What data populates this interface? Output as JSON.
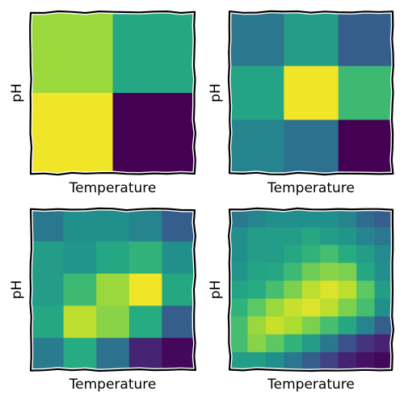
{
  "chart_data": [
    {
      "type": "heatmap",
      "xlabel": "Temperature",
      "ylabel": "pH",
      "colormap": "viridis",
      "grid": false,
      "values": [
        [
          0.85,
          0.6
        ],
        [
          0.98,
          0.0
        ]
      ]
    },
    {
      "type": "heatmap",
      "xlabel": "Temperature",
      "ylabel": "pH",
      "colormap": "viridis",
      "grid": false,
      "values": [
        [
          0.4,
          0.55,
          0.3
        ],
        [
          0.58,
          0.98,
          0.68
        ],
        [
          0.45,
          0.38,
          0.0
        ]
      ]
    },
    {
      "type": "heatmap",
      "xlabel": "Temperature",
      "ylabel": "pH",
      "colormap": "viridis",
      "grid": false,
      "values": [
        [
          0.4,
          0.5,
          0.5,
          0.45,
          0.3
        ],
        [
          0.55,
          0.52,
          0.6,
          0.65,
          0.5
        ],
        [
          0.55,
          0.68,
          0.85,
          0.98,
          0.6
        ],
        [
          0.6,
          0.9,
          0.82,
          0.62,
          0.3
        ],
        [
          0.42,
          0.62,
          0.38,
          0.1,
          0.02
        ]
      ]
    },
    {
      "type": "heatmap",
      "xlabel": "Temperature",
      "ylabel": "pH",
      "colormap": "viridis",
      "grid": false,
      "values": [
        [
          0.4,
          0.45,
          0.5,
          0.5,
          0.5,
          0.5,
          0.45,
          0.35,
          0.3
        ],
        [
          0.5,
          0.55,
          0.55,
          0.55,
          0.6,
          0.55,
          0.52,
          0.45,
          0.4
        ],
        [
          0.5,
          0.55,
          0.55,
          0.6,
          0.65,
          0.7,
          0.62,
          0.55,
          0.48
        ],
        [
          0.52,
          0.58,
          0.6,
          0.68,
          0.78,
          0.82,
          0.8,
          0.6,
          0.5
        ],
        [
          0.58,
          0.62,
          0.7,
          0.8,
          0.9,
          0.95,
          0.9,
          0.75,
          0.55
        ],
        [
          0.65,
          0.75,
          0.85,
          0.92,
          0.95,
          0.9,
          0.8,
          0.7,
          0.5
        ],
        [
          0.7,
          0.85,
          0.92,
          0.88,
          0.8,
          0.7,
          0.6,
          0.45,
          0.3
        ],
        [
          0.7,
          0.82,
          0.75,
          0.65,
          0.55,
          0.4,
          0.25,
          0.15,
          0.1
        ],
        [
          0.55,
          0.55,
          0.5,
          0.4,
          0.3,
          0.2,
          0.1,
          0.05,
          0.02
        ]
      ]
    }
  ]
}
